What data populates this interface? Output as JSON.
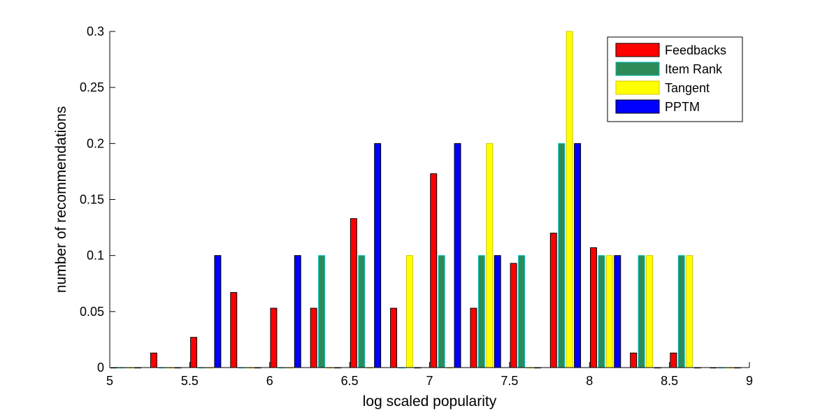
{
  "chart_data": {
    "type": "bar",
    "xlabel": "log scaled popularity",
    "ylabel": "number of recommendations",
    "xlim": [
      5,
      9
    ],
    "ylim": [
      0,
      0.3
    ],
    "xticks": [
      "5",
      "5.5",
      "6",
      "6.5",
      "7",
      "7.5",
      "8",
      "8.5",
      "9"
    ],
    "yticks": [
      "0",
      "0.05",
      "0.1",
      "0.15",
      "0.2",
      "0.25",
      "0.3"
    ],
    "grid": false,
    "legend_position": "top-right",
    "bin_centers": [
      5.1,
      5.35,
      5.6,
      5.85,
      6.1,
      6.35,
      6.6,
      6.85,
      7.1,
      7.35,
      7.6,
      7.85,
      8.1,
      8.35,
      8.6,
      8.85
    ],
    "series": [
      {
        "name": "Feedbacks",
        "color": "#ff0000",
        "edge": "#000000",
        "values": [
          0,
          0.013,
          0.027,
          0.067,
          0.053,
          0.053,
          0.133,
          0.053,
          0.173,
          0.053,
          0.093,
          0.12,
          0.107,
          0.013,
          0.013,
          0
        ]
      },
      {
        "name": "Item Rank",
        "color": "#2e8b57",
        "edge": "#00bfbf",
        "values": [
          0,
          0,
          0,
          0,
          0,
          0.1,
          0.1,
          0,
          0.1,
          0.1,
          0.1,
          0.2,
          0.1,
          0.1,
          0.1,
          0
        ]
      },
      {
        "name": "Tangent",
        "color": "#ffff00",
        "edge": "#d4c400",
        "values": [
          0,
          0,
          0,
          0,
          0,
          0,
          0,
          0.1,
          0,
          0.2,
          0,
          0.3,
          0.1,
          0.1,
          0.1,
          0
        ]
      },
      {
        "name": "PPTM",
        "color": "#0000ff",
        "edge": "#000000",
        "values": [
          0,
          0,
          0.1,
          0,
          0.1,
          0,
          0.2,
          0,
          0.2,
          0.1,
          0,
          0.2,
          0.1,
          0,
          0,
          0
        ]
      }
    ]
  }
}
